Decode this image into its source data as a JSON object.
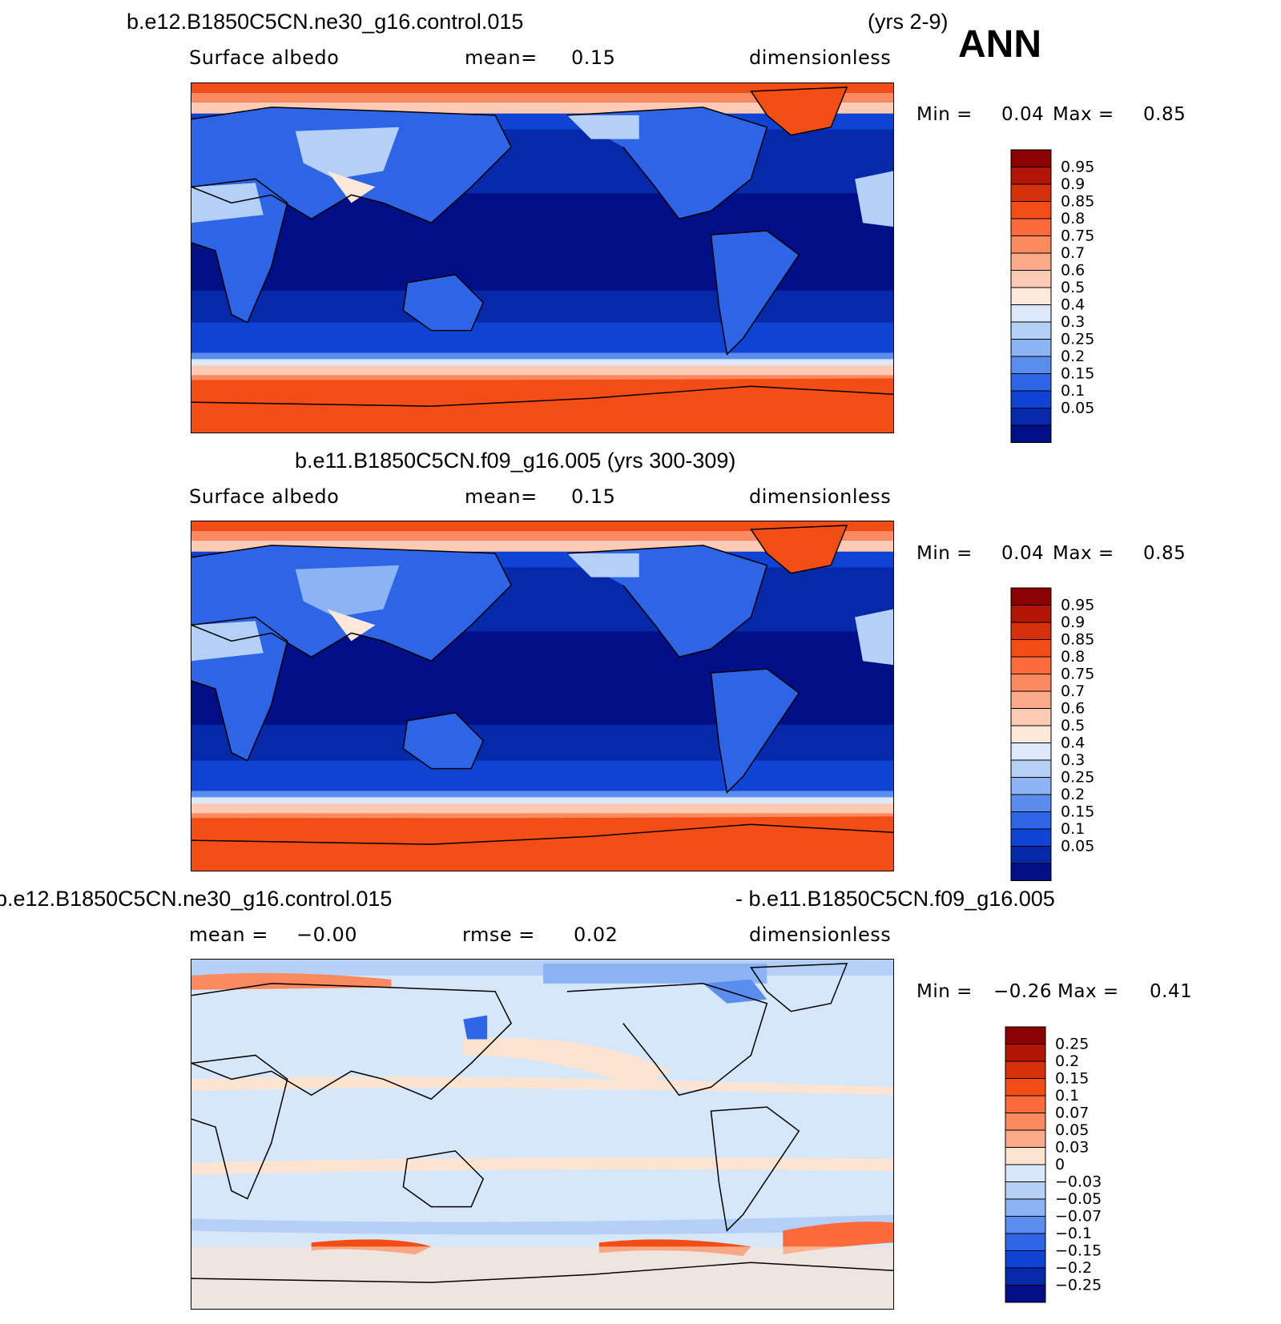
{
  "season": "ANN",
  "panels": [
    {
      "title_left": "b.e12.B1850C5CN.ne30_g16.control.015",
      "title_right": "(yrs 2-9)",
      "field": "Surface albedo",
      "stat1": "mean=",
      "stat1_val": "0.15",
      "units": "dimensionless",
      "min_label": "Min =",
      "min_val": "0.04",
      "max_label": "Max =",
      "max_val": "0.85",
      "type": "abs"
    },
    {
      "title_left": "b.e11.B1850C5CN.f09_g16.005 (yrs 300-309)",
      "title_right": "",
      "field": "Surface albedo",
      "stat1": "mean=",
      "stat1_val": "0.15",
      "units": "dimensionless",
      "min_label": "Min =",
      "min_val": "0.04",
      "max_label": "Max =",
      "max_val": "0.85",
      "type": "abs"
    },
    {
      "title_left": "b.e12.B1850C5CN.ne30_g16.control.015",
      "title_right": "- b.e11.B1850C5CN.f09_g16.005",
      "field": "mean =",
      "stat1": "rmse =",
      "stat1_val": "0.02",
      "field_val": "−0.00",
      "units": "dimensionless",
      "min_label": "Min =",
      "min_val": "−0.26",
      "max_label": "Max =",
      "max_val": "0.41",
      "type": "diff"
    }
  ],
  "colorbars": {
    "abs": {
      "labels": [
        "0.95",
        "0.9",
        "0.85",
        "0.8",
        "0.75",
        "0.7",
        "0.6",
        "0.5",
        "0.4",
        "0.3",
        "0.25",
        "0.2",
        "0.15",
        "0.1",
        "0.05"
      ],
      "colors": [
        "#8b0000",
        "#b01505",
        "#d6300a",
        "#f24d14",
        "#fb6a3a",
        "#fc8a60",
        "#fcaa8a",
        "#fdcbb4",
        "#fde8da",
        "#dde9fa",
        "#b5d0f7",
        "#8cb3f3",
        "#5b8def",
        "#2e65e7",
        "#0e43d4",
        "#0529a8",
        "#000f86"
      ]
    },
    "diff": {
      "labels": [
        "0.25",
        "0.2",
        "0.15",
        "0.1",
        "0.07",
        "0.05",
        "0.03",
        "0",
        "−0.03",
        "−0.05",
        "−0.07",
        "−0.1",
        "−0.15",
        "−0.2",
        "−0.25"
      ],
      "colors": [
        "#8b0000",
        "#b01505",
        "#d6300a",
        "#f24d14",
        "#fb6a3a",
        "#fc8a60",
        "#fcaa8a",
        "#fde4d0",
        "#d6e7fa",
        "#b5d0f7",
        "#8cb3f3",
        "#5b8def",
        "#2e65e7",
        "#0e43d4",
        "#0529a8",
        "#000f86"
      ]
    }
  }
}
